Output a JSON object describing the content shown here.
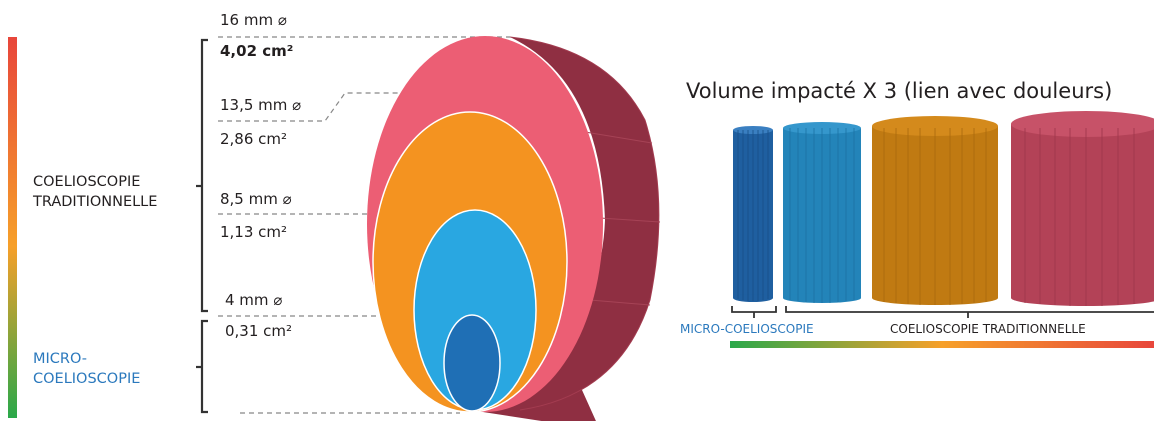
{
  "left_gradient": {
    "colors": [
      "#e8463b",
      "#f6a02a",
      "#2aa84a"
    ]
  },
  "bottom_gradient": {
    "colors": [
      "#2aa84a",
      "#f6a02a",
      "#e8463b"
    ]
  },
  "categories": {
    "traditional_line1": "COELIOSCOPIE",
    "traditional_line2": "TRADITIONNELLE",
    "micro_line1": "MICRO-",
    "micro_line2": "COELIOSCOPIE",
    "micro_color": "#2b79bd"
  },
  "sizes": [
    {
      "diameter": "16 mm",
      "area": "4,02 cm²",
      "color": "#ec5e74",
      "side_color": "#8f2f42"
    },
    {
      "diameter": "13,5 mm",
      "area": "2,86 cm²",
      "color": "#f49320"
    },
    {
      "diameter": "8,5 mm",
      "area": "1,13 cm²",
      "color": "#29a7e1"
    },
    {
      "diameter": "4 mm",
      "area": "0,31 cm²",
      "color": "#1f6fb5"
    }
  ],
  "diameter_symbol": "⌀",
  "volume_panel": {
    "title": "Volume impacté X 3 (lien avec douleurs)",
    "label_micro": "MICRO-COELIOSCOPIE",
    "label_traditional": "COELIOSCOPIE TRADITIONNELLE",
    "cylinder_colors": [
      "#1f5fa0",
      "#2384b9",
      "#c07a12",
      "#b34257"
    ]
  }
}
